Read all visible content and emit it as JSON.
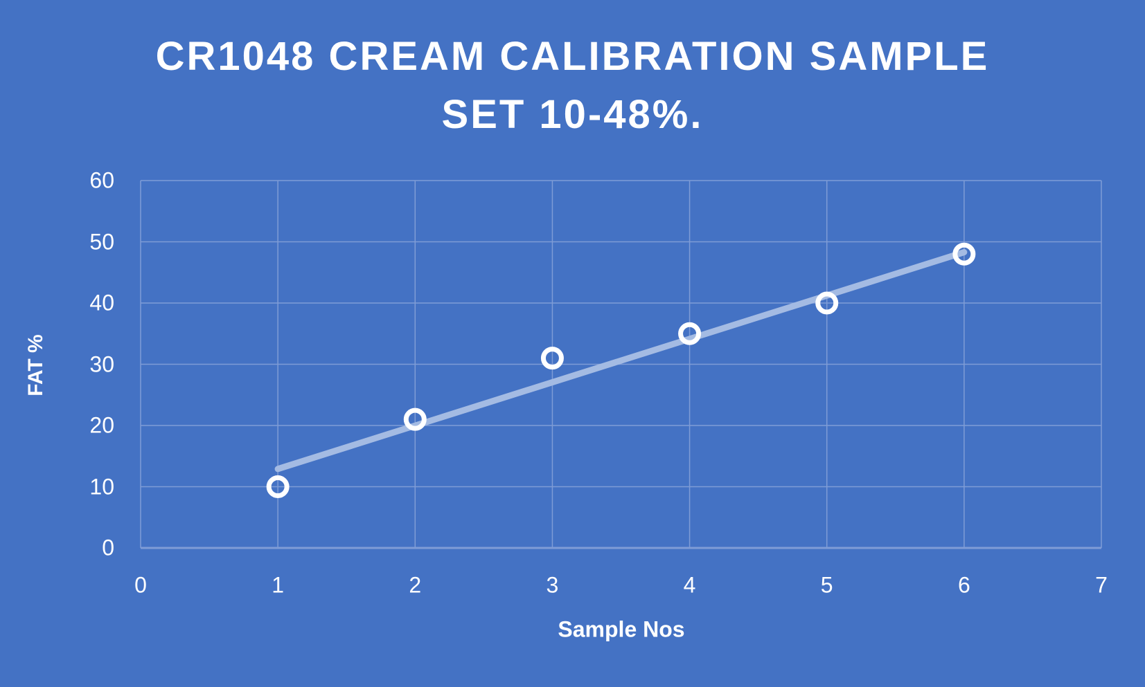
{
  "chart_data": {
    "type": "scatter",
    "title": "CR1048 CREAM CALIBRATION SAMPLE SET 10-48%.",
    "title_lines": [
      "CR1048 CREAM CALIBRATION SAMPLE",
      "SET 10-48%."
    ],
    "xlabel": "Sample Nos",
    "ylabel": "FAT %",
    "xlim": [
      0,
      7
    ],
    "ylim": [
      0,
      60
    ],
    "x_ticks": [
      "0",
      "1",
      "2",
      "3",
      "4",
      "5",
      "6",
      "7"
    ],
    "y_ticks": [
      "0",
      "10",
      "20",
      "30",
      "40",
      "50",
      "60"
    ],
    "grid": true,
    "legend": null,
    "series": [
      {
        "name": "FAT %",
        "x": [
          1,
          2,
          3,
          4,
          5,
          6
        ],
        "y": [
          10,
          21,
          31,
          35,
          40,
          48
        ],
        "marker": "open-circle"
      }
    ],
    "trendline": {
      "type": "linear",
      "x": [
        1,
        6
      ],
      "y": [
        12.9,
        48.3
      ]
    },
    "colors": {
      "background": "#4472c4",
      "gridline": "#7f9cd6",
      "marker": "#ffffff",
      "trendline": "#a4bbe3",
      "text": "#ffffff"
    }
  }
}
